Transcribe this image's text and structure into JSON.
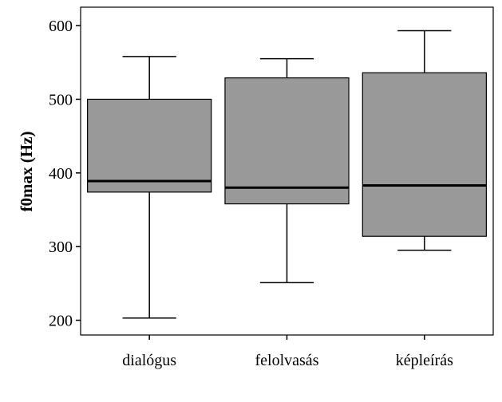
{
  "chart_data": {
    "type": "boxplot",
    "title": "",
    "xlabel": "",
    "ylabel": "f0max (Hz)",
    "ylim": [
      180,
      625
    ],
    "yticks": [
      200,
      300,
      400,
      500,
      600
    ],
    "grid": false,
    "legend": "none",
    "categories": [
      "dialógus",
      "felolvasás",
      "képleírás"
    ],
    "boxes": [
      {
        "category": "dialógus",
        "whisker_low": 203,
        "q1": 374,
        "median": 389,
        "q3": 500,
        "whisker_high": 558
      },
      {
        "category": "felolvasás",
        "whisker_low": 251,
        "q1": 358,
        "median": 380,
        "q3": 529,
        "whisker_high": 555
      },
      {
        "category": "képleírás",
        "whisker_low": 295,
        "q1": 314,
        "median": 383,
        "q3": 536,
        "whisker_high": 593
      }
    ],
    "colors": {
      "box_fill": "#999999",
      "stroke": "#000000",
      "background": "#ffffff"
    }
  }
}
